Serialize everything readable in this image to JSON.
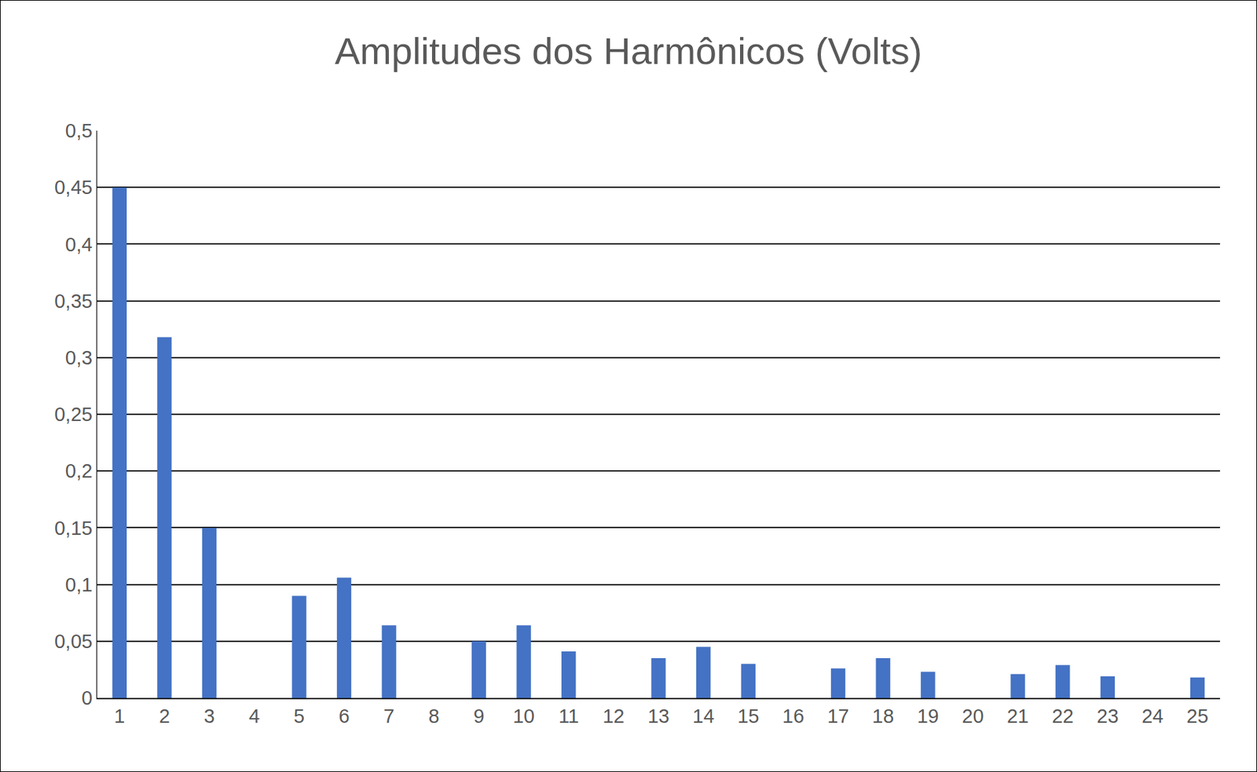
{
  "chart_data": {
    "type": "bar",
    "title": "Amplitudes dos Harmônicos (Volts)",
    "categories": [
      "1",
      "2",
      "3",
      "4",
      "5",
      "6",
      "7",
      "8",
      "9",
      "10",
      "11",
      "12",
      "13",
      "14",
      "15",
      "16",
      "17",
      "18",
      "19",
      "20",
      "21",
      "22",
      "23",
      "24",
      "25"
    ],
    "values": [
      0.45,
      0.318,
      0.15,
      0,
      0.09,
      0.106,
      0.064,
      0,
      0.05,
      0.064,
      0.041,
      0,
      0.035,
      0.045,
      0.03,
      0,
      0.026,
      0.035,
      0.023,
      0,
      0.021,
      0.029,
      0.019,
      0,
      0.018
    ],
    "color": "#4472c4",
    "ylim": [
      0,
      0.5
    ],
    "yticks": [
      0,
      {
        "value": 0.05,
        "label": "0,05"
      },
      {
        "value": 0.1,
        "label": "0,1"
      },
      {
        "value": 0.15,
        "label": "0,15"
      },
      {
        "value": 0.2,
        "label": "0,2"
      },
      {
        "value": 0.25,
        "label": "0,25"
      },
      {
        "value": 0.3,
        "label": "0,3"
      },
      {
        "value": 0.35,
        "label": "0,35"
      },
      {
        "value": 0.4,
        "label": "0,4"
      },
      {
        "value": 0.45,
        "label": "0,45"
      },
      {
        "value": 0.5,
        "label": "0,5"
      }
    ],
    "grid": true
  }
}
